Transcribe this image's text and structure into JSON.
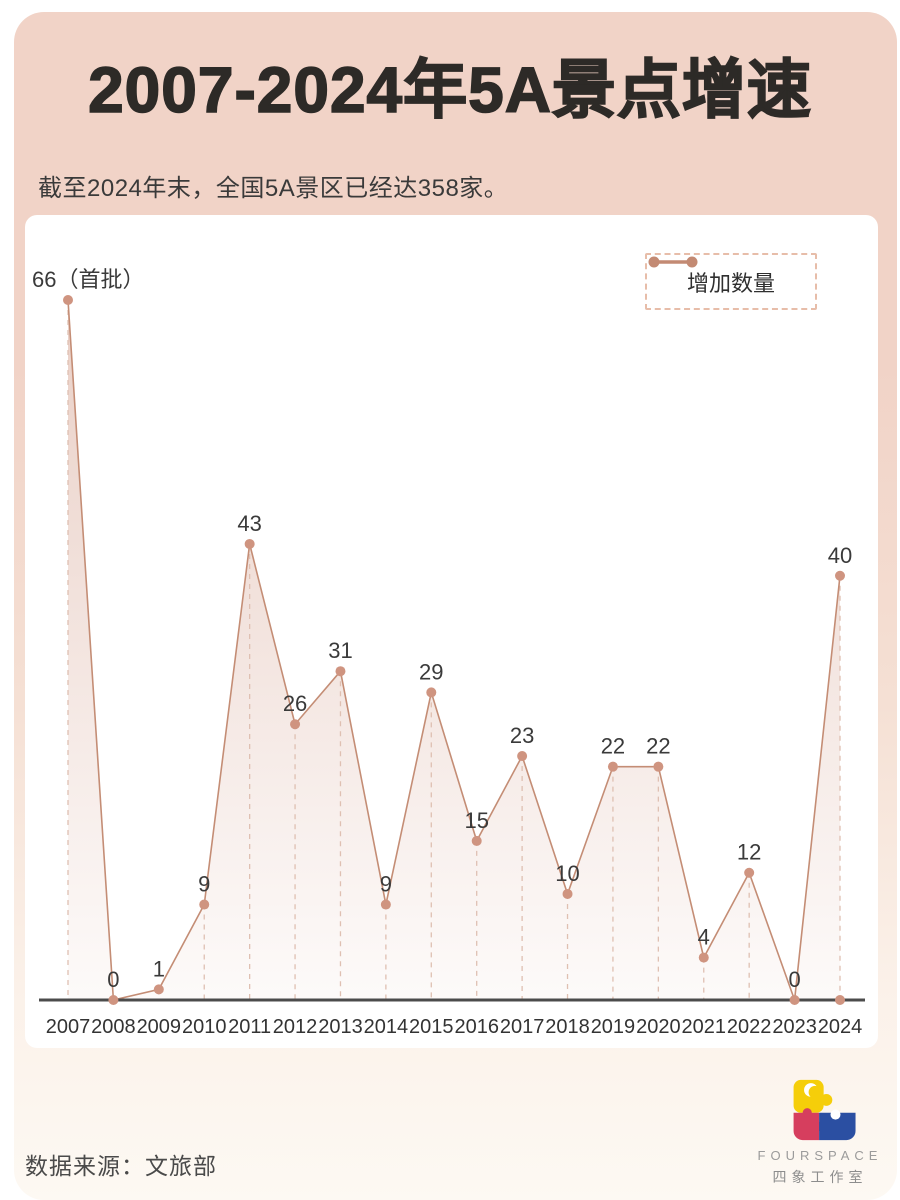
{
  "header": {
    "title": "2007-2024年5A景点增速",
    "subtitle": "截至2024年末，全国5A景区已经达358家。"
  },
  "legend": {
    "label": "增加数量"
  },
  "chart_data": {
    "type": "area",
    "title": "2007-2024年5A景点增速",
    "categories": [
      "2007",
      "2008",
      "2009",
      "2010",
      "2011",
      "2012",
      "2013",
      "2014",
      "2015",
      "2016",
      "2017",
      "2018",
      "2019",
      "2020",
      "2021",
      "2022",
      "2023",
      "2024"
    ],
    "series": [
      {
        "name": "增加数量",
        "values": [
          66,
          0,
          1,
          9,
          43,
          26,
          31,
          9,
          29,
          15,
          23,
          10,
          22,
          22,
          4,
          12,
          0,
          40
        ]
      }
    ],
    "point_labels": [
      "66（首批）",
      "0",
      "1",
      "9",
      "43",
      "26",
      "31",
      "9",
      "29",
      "15",
      "23",
      "10",
      "22",
      "22",
      "4",
      "12",
      "0",
      "40"
    ],
    "ylim": [
      0,
      70
    ],
    "grid": false,
    "legend_position": "top-right",
    "baseline_end_dot": true,
    "colors": {
      "line": "#c48d75",
      "dot": "#cf9480",
      "fill_top": "rgba(202,137,114,0.40)",
      "fill_bottom": "rgba(202,137,114,0.04)",
      "drop_line": "#dfc0b2",
      "axis": "#4c4c4c",
      "value_label": "#3a3a3a",
      "tick_label": "#333333"
    }
  },
  "footer": {
    "source": "数据来源：文旅部",
    "logo_name": "FOURSPACE",
    "logo_cn": "四象工作室",
    "logo_colors": {
      "yellow": "#f5ce0a",
      "red": "#d63e5e",
      "blue": "#2b4fa2"
    }
  },
  "colors": {
    "poster_top": "#f1d3c7",
    "poster_bottom": "#fdf9f3",
    "card": "#ffffff",
    "legend_border": "#e7bda9"
  }
}
